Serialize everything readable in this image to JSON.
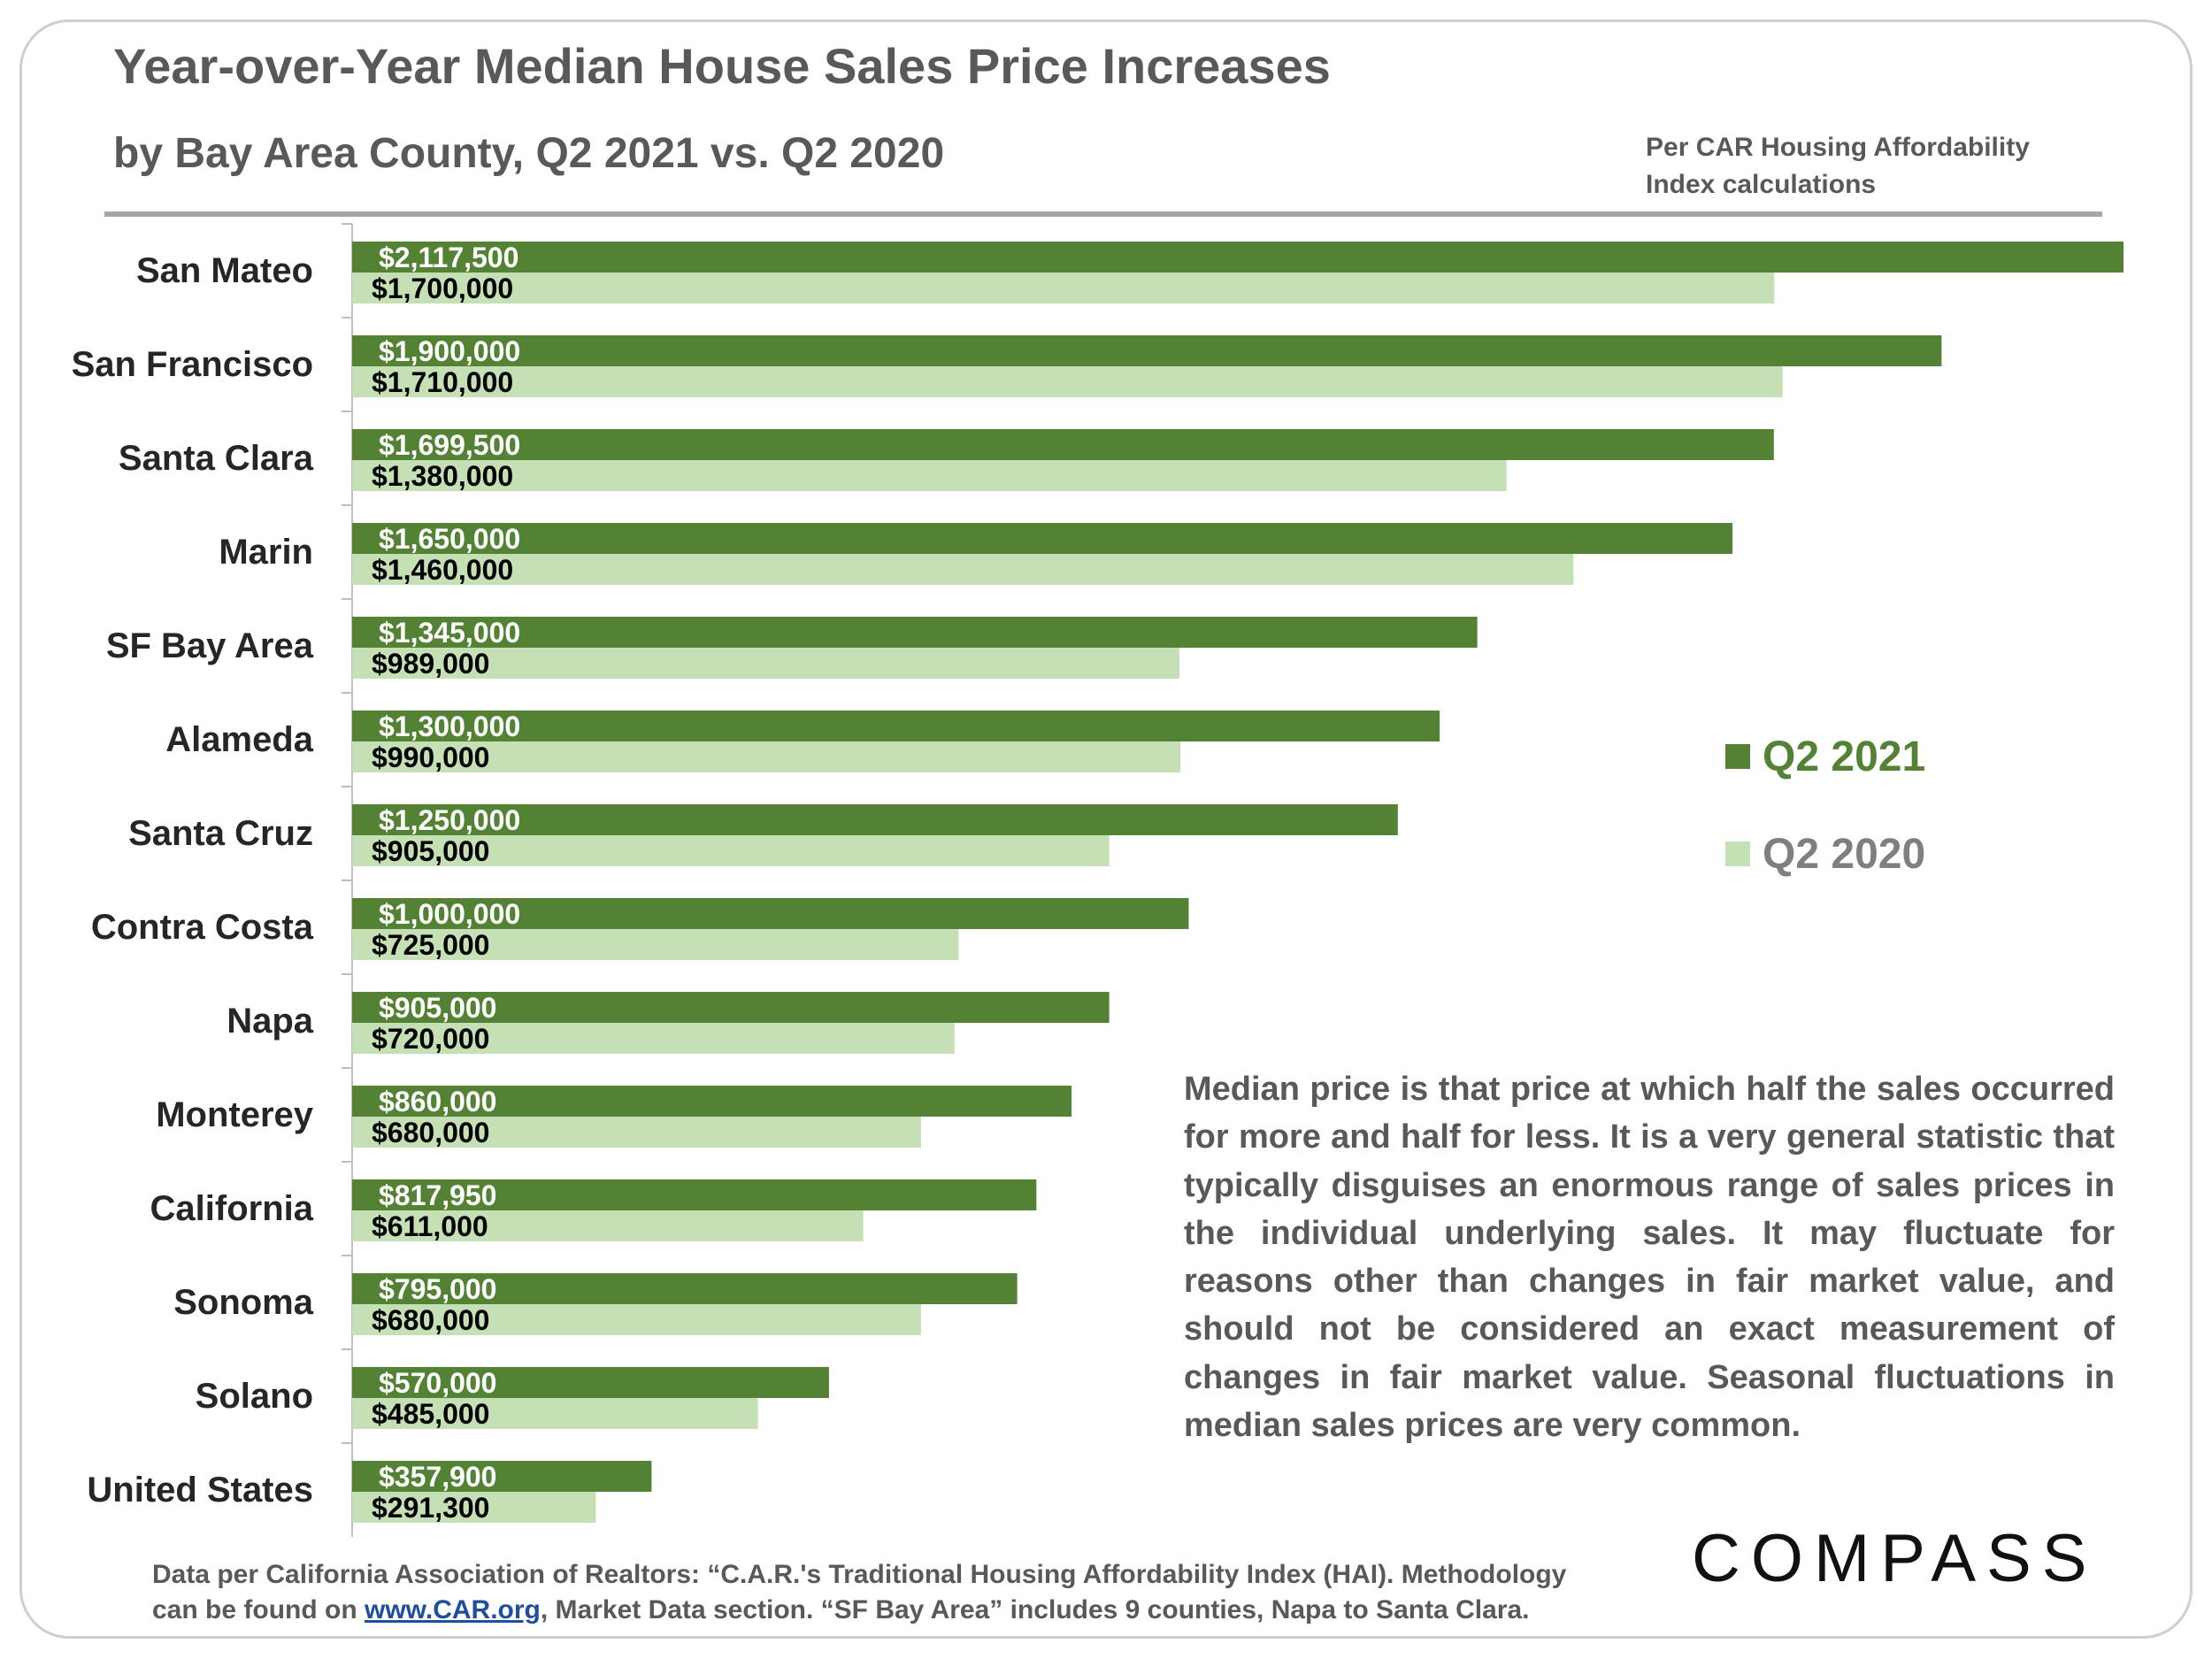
{
  "title": "Year-over-Year Median House Sales Price Increases",
  "subtitle": "by Bay Area County, Q2 2021 vs. Q2 2020",
  "note": "Per CAR Housing Affordability Index calculations",
  "explanation": "Median price is that price at which half the sales occurred for more and half for less. It is a very general statistic that typically disguises an enormous range of sales prices in the individual underlying sales. It may fluctuate for reasons other than changes in fair market value, and should not be considered an exact measurement of changes in fair market value. Seasonal fluctuations in median sales prices are very common.",
  "source": {
    "line1": "Data per California Association of Realtors: “C.A.R.'s Traditional Housing Affordability Index (HAI). Methodology",
    "line2_prefix": "can be found on ",
    "link_text": "www.CAR.org",
    "line2_suffix": ", Market Data section. “SF Bay Area” includes 9 counties, Napa to Santa Clara."
  },
  "logo": "COMPASS",
  "colors": {
    "q2_2021": "#548235",
    "q2_2020": "#c5e0b4",
    "legend_2021_text": "#548235",
    "legend_2020_text": "#7f7f7f",
    "category_text": "#262626"
  },
  "chart_data": {
    "type": "bar",
    "orientation": "horizontal",
    "title": "Year-over-Year Median House Sales Price Increases",
    "subtitle": "by Bay Area County, Q2 2021 vs. Q2 2020",
    "categories": [
      "San Mateo",
      "San Francisco",
      "Santa Clara",
      "Marin",
      "SF Bay Area",
      "Alameda",
      "Santa Cruz",
      "Contra Costa",
      "Napa",
      "Monterey",
      "California",
      "Sonoma",
      "Solano",
      "United States"
    ],
    "series": [
      {
        "name": "Q2 2021",
        "values": [
          2117500,
          1900000,
          1699500,
          1650000,
          1345000,
          1300000,
          1250000,
          1000000,
          905000,
          860000,
          817950,
          795000,
          570000,
          357900
        ],
        "labels": [
          "$2,117,500",
          "$1,900,000",
          "$1,699,500",
          "$1,650,000",
          "$1,345,000",
          "$1,300,000",
          "$1,250,000",
          "$1,000,000",
          "$905,000",
          "$860,000",
          "$817,950",
          "$795,000",
          "$570,000",
          "$357,900"
        ]
      },
      {
        "name": "Q2 2020",
        "values": [
          1700000,
          1710000,
          1380000,
          1460000,
          989000,
          990000,
          905000,
          725000,
          720000,
          680000,
          611000,
          680000,
          485000,
          291300
        ],
        "labels": [
          "$1,700,000",
          "$1,710,000",
          "$1,380,000",
          "$1,460,000",
          "$989,000",
          "$990,000",
          "$905,000",
          "$725,000",
          "$720,000",
          "$680,000",
          "$611,000",
          "$680,000",
          "$485,000",
          "$291,300"
        ]
      }
    ],
    "xlim": [
      0,
      2117500
    ],
    "grid": false,
    "legend_position": "right"
  }
}
